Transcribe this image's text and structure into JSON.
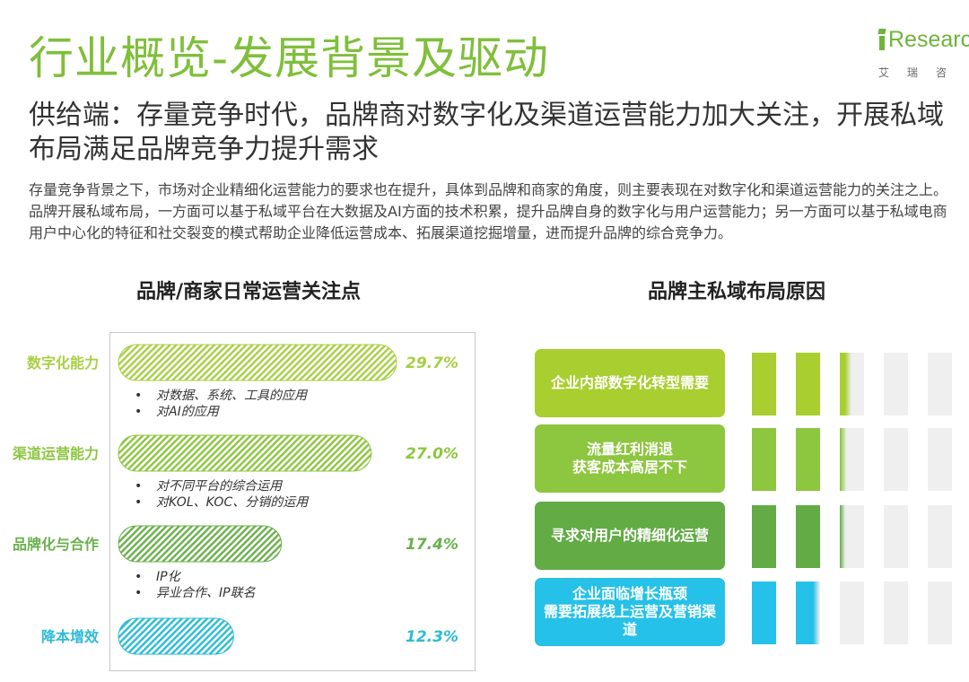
{
  "header": {
    "title": "行业概览-发展背景及驱动",
    "subtitle": "供给端：存量竞争时代，品牌商对数字化及渠道运营能力加大关注，开展私域布局满足品牌竞争力提升需求",
    "description": "存量竞争背景之下，市场对企业精细化运营能力的要求也在提升，具体到品牌和商家的角度，则主要表现在对数字化和渠道运营能力的关注之上。品牌开展私域布局，一方面可以基于私域平台在大数据及AI方面的技术积累，提升品牌自身的数字化与用户运营能力；另一方面可以基于私域电商用户中心化的特征和社交裂变的模式帮助企业降低运营成本、拓展渠道挖掘增量，进而提升品牌的综合竞争力。"
  },
  "logo": {
    "word": "Researc",
    "sub": "艾瑞咨"
  },
  "chart_data": {
    "type": "bar",
    "orientation": "horizontal",
    "title": "品牌/商家日常运营关注点",
    "categories": [
      "数字化能力",
      "渠道运营能力",
      "品牌化与合作",
      "降本增效"
    ],
    "values": [
      29.7,
      27.0,
      17.4,
      12.3
    ],
    "value_labels": [
      "29.7%",
      "27.0%",
      "17.4%",
      "12.3%"
    ],
    "unit": "%",
    "colors": [
      "#a8cf45",
      "#8cc63f",
      "#6ab04c",
      "#2bbbd6"
    ],
    "grid": false
  },
  "bullets": [
    [
      "对数据、系统、工具的应用",
      "对AI的应用"
    ],
    [
      "对不同平台的综合运用",
      "对KOL、KOC、分销的运用"
    ],
    [
      "IP化",
      "异业合作、IP联名"
    ]
  ],
  "reasons": {
    "title": "品牌主私域布局原因",
    "items": [
      {
        "label": "企业内部数字化转型需要",
        "color": "#a8cf2f",
        "level": 2.3
      },
      {
        "label": "流量红利消退\n获客成本高居不下",
        "color": "#8dc63f",
        "level": 2.1
      },
      {
        "label": "寻求对用户的精细化运营",
        "color": "#62ab45",
        "level": 2.05
      },
      {
        "label": "企业面临增长瓶颈\n需要拓展线上运营及营销渠道",
        "color": "#26c1e8",
        "level": 1.8
      }
    ]
  }
}
